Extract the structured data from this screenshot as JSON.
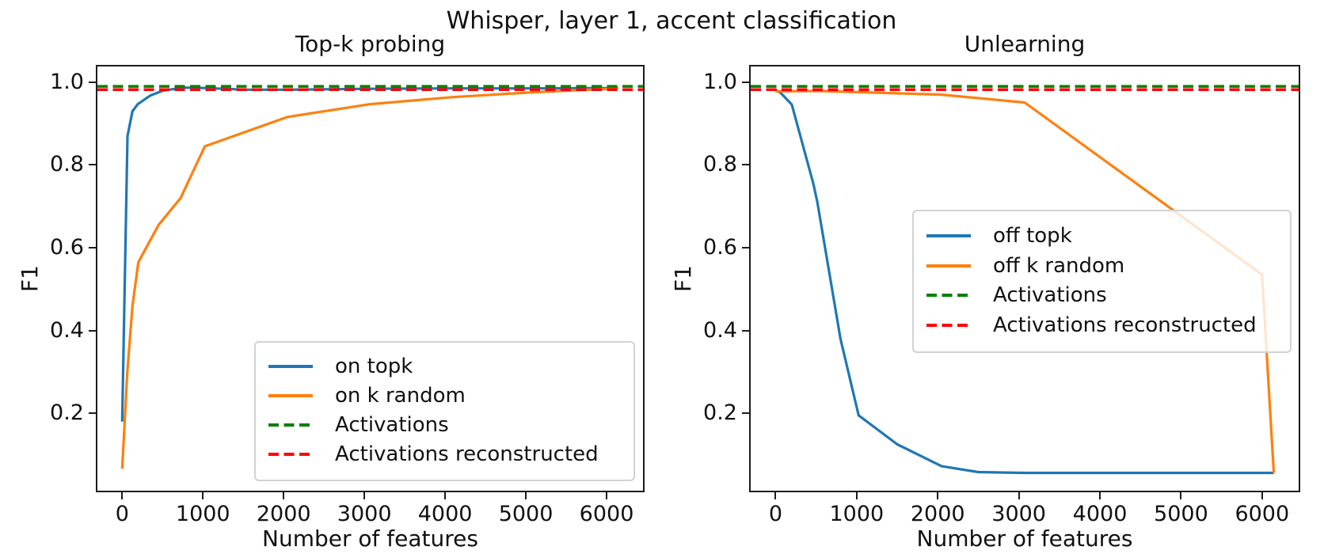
{
  "figure": {
    "title": "Whisper, layer 1, accent classification"
  },
  "chart_data": [
    {
      "type": "line",
      "title": "Top-k probing",
      "xlabel": "Number of features",
      "ylabel": "F1",
      "xlim": [
        -307,
        6451
      ],
      "ylim": [
        0.013,
        1.038
      ],
      "xticks": [
        0,
        1000,
        2000,
        3000,
        4000,
        5000,
        6000
      ],
      "yticks": [
        0.2,
        0.4,
        0.6,
        0.8,
        1.0
      ],
      "grid": false,
      "legend_position": "lower right",
      "series": [
        {
          "name": "on topk",
          "color": "#1f77b4",
          "style": "solid",
          "points": [
            [
              0,
              0.18
            ],
            [
              66,
              0.87
            ],
            [
              128,
              0.93
            ],
            [
              193,
              0.947
            ],
            [
              350,
              0.968
            ],
            [
              512,
              0.98
            ],
            [
              768,
              0.987
            ],
            [
              1024,
              0.986
            ],
            [
              1536,
              0.982
            ],
            [
              2048,
              0.982
            ],
            [
              3072,
              0.984
            ],
            [
              4096,
              0.985
            ],
            [
              5120,
              0.985
            ],
            [
              6144,
              0.986
            ]
          ]
        },
        {
          "name": "on k random",
          "color": "#ff7f0e",
          "style": "solid",
          "points": [
            [
              0,
              0.066
            ],
            [
              64,
              0.3
            ],
            [
              128,
              0.46
            ],
            [
              200,
              0.565
            ],
            [
              450,
              0.655
            ],
            [
              723,
              0.72
            ],
            [
              1024,
              0.845
            ],
            [
              2048,
              0.916
            ],
            [
              3072,
              0.947
            ],
            [
              4096,
              0.964
            ],
            [
              5120,
              0.976
            ],
            [
              6144,
              0.985
            ]
          ]
        },
        {
          "name": "Activations",
          "color": "#008000",
          "style": "dashed",
          "hline": 0.99
        },
        {
          "name": "Activations reconstructed",
          "color": "#ff0000",
          "style": "dashed",
          "hline": 0.982
        }
      ]
    },
    {
      "type": "line",
      "title": "Unlearning",
      "xlabel": "Number of features",
      "ylabel": "F1",
      "xlim": [
        -307,
        6451
      ],
      "ylim": [
        0.013,
        1.038
      ],
      "xticks": [
        0,
        1000,
        2000,
        3000,
        4000,
        5000,
        6000
      ],
      "yticks": [
        0.2,
        0.4,
        0.6,
        0.8,
        1.0
      ],
      "grid": false,
      "legend_position": "center right",
      "series": [
        {
          "name": "off topk",
          "color": "#1f77b4",
          "style": "solid",
          "points": [
            [
              0,
              0.982
            ],
            [
              64,
              0.974
            ],
            [
              200,
              0.946
            ],
            [
              465,
              0.755
            ],
            [
              515,
              0.71
            ],
            [
              800,
              0.38
            ],
            [
              1024,
              0.195
            ],
            [
              1500,
              0.125
            ],
            [
              2048,
              0.072
            ],
            [
              2500,
              0.058
            ],
            [
              3072,
              0.056
            ],
            [
              4096,
              0.056
            ],
            [
              5120,
              0.056
            ],
            [
              6144,
              0.056
            ]
          ]
        },
        {
          "name": "off k random",
          "color": "#ff7f0e",
          "style": "solid",
          "points": [
            [
              0,
              0.978
            ],
            [
              512,
              0.979
            ],
            [
              1024,
              0.976
            ],
            [
              2048,
              0.97
            ],
            [
              3072,
              0.951
            ],
            [
              6000,
              0.535
            ],
            [
              6144,
              0.056
            ]
          ]
        },
        {
          "name": "Activations",
          "color": "#008000",
          "style": "dashed",
          "hline": 0.99
        },
        {
          "name": "Activations reconstructed",
          "color": "#ff0000",
          "style": "dashed",
          "hline": 0.982
        }
      ]
    }
  ]
}
